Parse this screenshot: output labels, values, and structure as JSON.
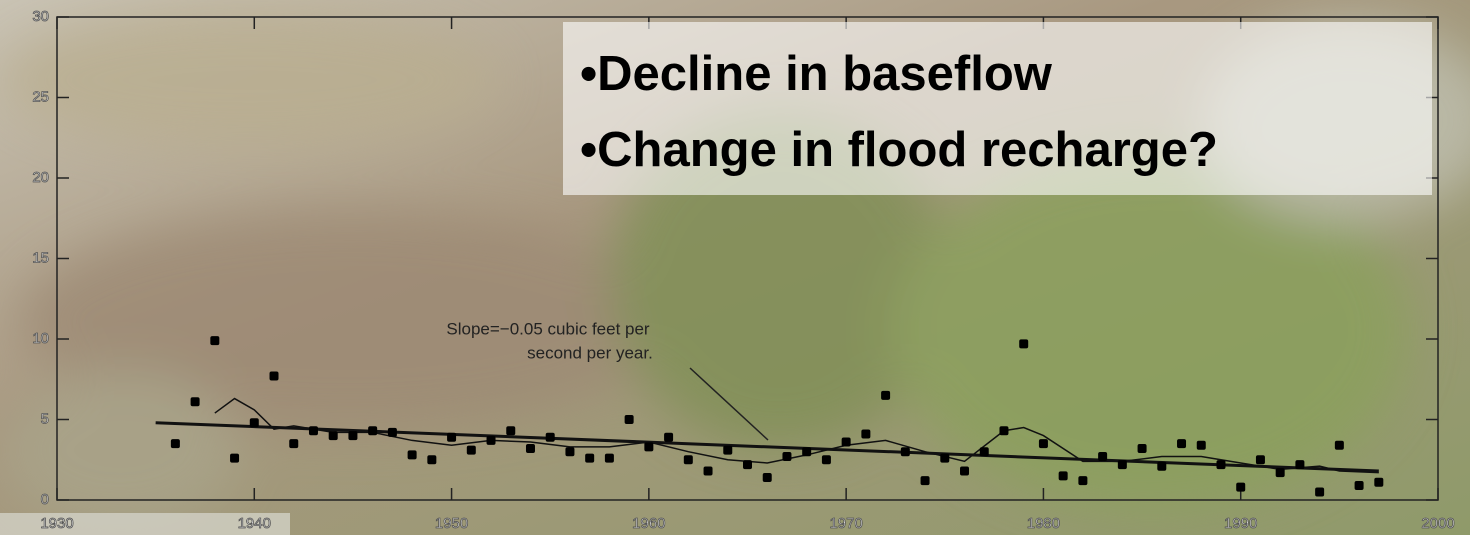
{
  "chart_data": {
    "type": "scatter",
    "overlay_text": [
      "•Decline in baseflow",
      "•Change in flood recharge?"
    ],
    "annotation": [
      "Slope=−0.05 cubic feet per",
      "second per year."
    ],
    "xlim": [
      1930,
      2000
    ],
    "xticks": [
      1930,
      1940,
      1950,
      1960,
      1970,
      1980,
      1990,
      2000
    ],
    "ylim": [
      0,
      30
    ],
    "yticks": [
      0,
      5,
      10,
      15,
      20,
      25,
      30
    ],
    "color": "#000000",
    "x": [
      1936,
      1937,
      1938,
      1939,
      1940,
      1941,
      1942,
      1943,
      1944,
      1945,
      1946,
      1947,
      1948,
      1949,
      1950,
      1951,
      1952,
      1953,
      1954,
      1955,
      1956,
      1957,
      1958,
      1959,
      1960,
      1961,
      1962,
      1963,
      1964,
      1965,
      1966,
      1967,
      1968,
      1969,
      1970,
      1971,
      1972,
      1973,
      1974,
      1975,
      1976,
      1977,
      1978,
      1979,
      1980,
      1981,
      1982,
      1983,
      1984,
      1985,
      1986,
      1987,
      1988,
      1989,
      1990,
      1991,
      1992,
      1993,
      1994,
      1995,
      1996,
      1997
    ],
    "values": [
      3.5,
      6.1,
      9.9,
      2.6,
      4.8,
      7.7,
      3.5,
      4.3,
      4.0,
      4.0,
      4.3,
      4.2,
      2.8,
      2.5,
      3.9,
      3.1,
      3.7,
      4.3,
      3.2,
      3.9,
      3.0,
      2.6,
      2.6,
      5.0,
      3.3,
      3.9,
      2.5,
      1.8,
      3.1,
      2.2,
      1.4,
      2.7,
      3.0,
      2.5,
      3.6,
      4.1,
      6.5,
      3.0,
      1.2,
      2.6,
      1.8,
      3.0,
      4.3,
      9.7,
      3.5,
      1.5,
      1.2,
      2.7,
      2.2,
      3.2,
      2.1,
      3.5,
      3.4,
      2.2,
      0.8,
      2.5,
      1.7,
      2.2,
      0.5,
      3.4,
      0.9,
      1.1
    ],
    "trend": {
      "x": [
        1935,
        1997
      ],
      "values": [
        4.8,
        1.8
      ]
    },
    "smooth": {
      "x": [
        1938,
        1939,
        1940,
        1941,
        1942,
        1944,
        1946,
        1948,
        1950,
        1952,
        1954,
        1956,
        1958,
        1960,
        1962,
        1964,
        1966,
        1968,
        1970,
        1972,
        1974,
        1976,
        1978,
        1979,
        1980,
        1982,
        1984,
        1986,
        1988,
        1990,
        1992,
        1994,
        1995,
        1997
      ],
      "values": [
        5.4,
        6.3,
        5.6,
        4.4,
        4.6,
        4.2,
        4.2,
        3.7,
        3.4,
        3.7,
        3.6,
        3.3,
        3.3,
        3.6,
        3.0,
        2.5,
        2.3,
        2.8,
        3.4,
        3.7,
        3.0,
        2.4,
        4.3,
        4.5,
        4.0,
        2.4,
        2.4,
        2.7,
        2.7,
        2.3,
        1.9,
        2.1,
        1.8,
        1.7
      ]
    }
  }
}
